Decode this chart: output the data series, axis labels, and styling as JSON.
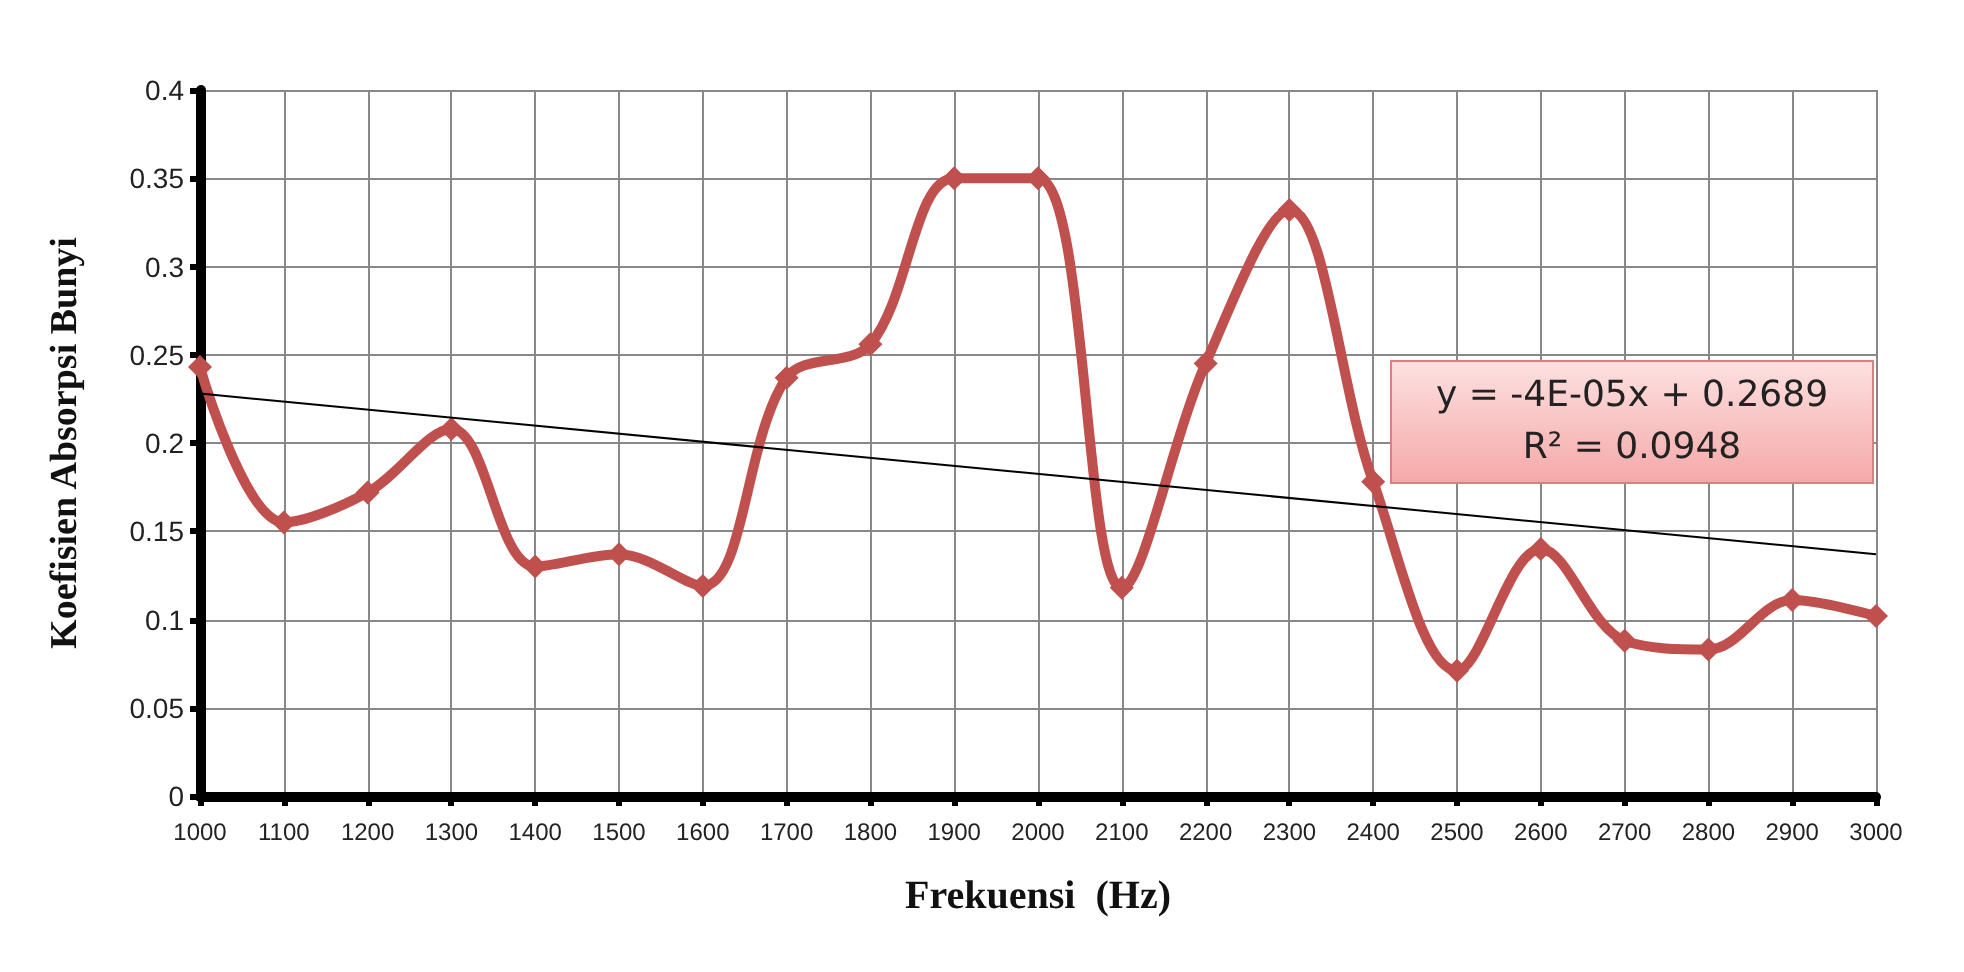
{
  "chart_data": {
    "type": "line",
    "xlabel": "Frekuensi  (Hz)",
    "ylabel": "Koefisien Absorpsi Bunyi",
    "categories": [
      "1000",
      "1100",
      "1200",
      "1300",
      "1400",
      "1500",
      "1600",
      "1700",
      "1800",
      "1900",
      "2000",
      "2100",
      "2200",
      "2300",
      "2400",
      "2500",
      "2600",
      "2700",
      "2800",
      "2900",
      "3000"
    ],
    "series": [
      {
        "color": "#c0504d",
        "marker": "diamond",
        "values": [
          0.243,
          0.155,
          0.172,
          0.208,
          0.13,
          0.137,
          0.119,
          0.237,
          0.256,
          0.35,
          0.35,
          0.118,
          0.245,
          0.332,
          0.178,
          0.071,
          0.14,
          0.088,
          0.083,
          0.111,
          0.102
        ]
      },
      {
        "type": "line",
        "color": "#000000",
        "marker": "none",
        "values": [
          0.228,
          null,
          null,
          null,
          null,
          null,
          null,
          null,
          null,
          null,
          null,
          null,
          null,
          null,
          null,
          null,
          null,
          null,
          null,
          null,
          0.137
        ]
      }
    ],
    "ylim": [
      0,
      0.4
    ],
    "yticks": [
      0,
      0.05,
      0.1,
      0.15,
      0.2,
      0.25,
      0.3,
      0.35,
      0.4
    ],
    "grid": true,
    "annotations": [
      "y = -4E-05x + 0.2689",
      "R² = 0.0948"
    ]
  }
}
